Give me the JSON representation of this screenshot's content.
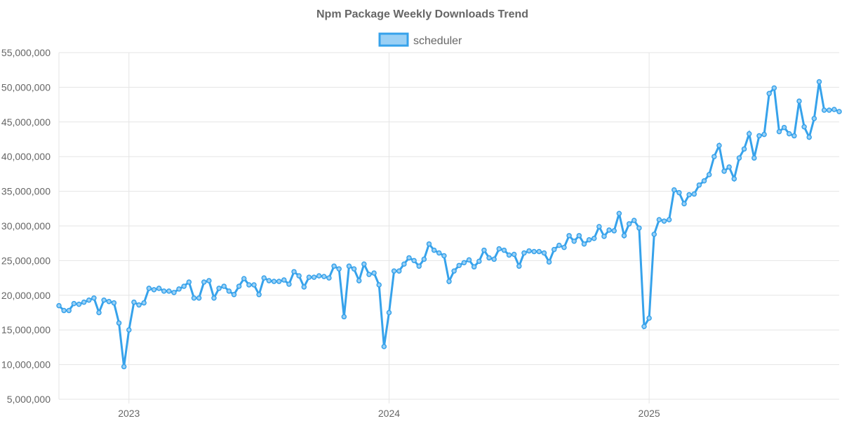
{
  "chart_data": {
    "type": "line",
    "title": "Npm Package Weekly Downloads Trend",
    "xlabel": "",
    "ylabel": "",
    "legend_position": "top-center",
    "grid": true,
    "colors": {
      "series": "#36a2eb",
      "fill": "#9ad0f5",
      "grid": "#e5e5e5",
      "text": "#666666"
    },
    "ylim": [
      5000000,
      55000000
    ],
    "y_ticks": [
      {
        "value": 55000000,
        "label": "55,000,000"
      },
      {
        "value": 50000000,
        "label": "50,000,000"
      },
      {
        "value": 45000000,
        "label": "45,000,000"
      },
      {
        "value": 40000000,
        "label": "40,000,000"
      },
      {
        "value": 35000000,
        "label": "35,000,000"
      },
      {
        "value": 30000000,
        "label": "30,000,000"
      },
      {
        "value": 25000000,
        "label": "25,000,000"
      },
      {
        "value": 20000000,
        "label": "20,000,000"
      },
      {
        "value": 15000000,
        "label": "15,000,000"
      },
      {
        "value": 10000000,
        "label": "10,000,000"
      },
      {
        "value": 5000000,
        "label": "5,000,000"
      }
    ],
    "x_ticks": [
      {
        "label": "2023",
        "week_index": 14
      },
      {
        "label": "2024",
        "week_index": 66
      },
      {
        "label": "2025",
        "week_index": 118
      }
    ],
    "series": [
      {
        "name": "scheduler",
        "values": [
          18500000,
          17800000,
          17800000,
          18800000,
          18700000,
          19000000,
          19300000,
          19600000,
          17500000,
          19300000,
          19100000,
          18900000,
          16000000,
          9700000,
          15000000,
          19000000,
          18600000,
          18900000,
          21000000,
          20800000,
          21000000,
          20600000,
          20600000,
          20400000,
          20900000,
          21300000,
          21900000,
          19600000,
          19600000,
          21900000,
          22100000,
          19600000,
          21000000,
          21300000,
          20600000,
          20100000,
          21300000,
          22400000,
          21500000,
          21500000,
          20100000,
          22500000,
          22100000,
          22000000,
          22000000,
          22200000,
          21600000,
          23400000,
          22800000,
          21200000,
          22600000,
          22600000,
          22800000,
          22700000,
          22500000,
          24200000,
          23800000,
          16900000,
          24200000,
          23800000,
          22100000,
          24500000,
          23000000,
          23200000,
          21500000,
          12600000,
          17500000,
          23500000,
          23500000,
          24500000,
          25400000,
          25000000,
          24200000,
          25200000,
          27400000,
          26500000,
          26100000,
          25700000,
          22000000,
          23500000,
          24300000,
          24700000,
          25100000,
          24100000,
          24900000,
          26500000,
          25400000,
          25200000,
          26700000,
          26500000,
          25800000,
          25900000,
          24200000,
          26100000,
          26400000,
          26300000,
          26300000,
          26100000,
          24800000,
          26600000,
          27200000,
          26900000,
          28600000,
          27800000,
          28600000,
          27400000,
          28000000,
          28200000,
          29900000,
          28500000,
          29400000,
          29300000,
          31800000,
          28600000,
          30300000,
          30800000,
          29700000,
          15500000,
          16700000,
          28800000,
          30900000,
          30700000,
          30900000,
          35200000,
          34800000,
          33200000,
          34500000,
          34600000,
          35900000,
          36500000,
          37400000,
          40000000,
          41600000,
          37900000,
          38500000,
          36800000,
          39800000,
          41100000,
          43300000,
          39800000,
          43000000,
          43200000,
          49100000,
          49900000,
          43600000,
          44200000,
          43300000,
          43000000,
          48000000,
          44300000,
          42800000,
          45500000,
          50800000,
          46700000,
          46700000,
          46800000,
          46500000
        ]
      }
    ]
  }
}
